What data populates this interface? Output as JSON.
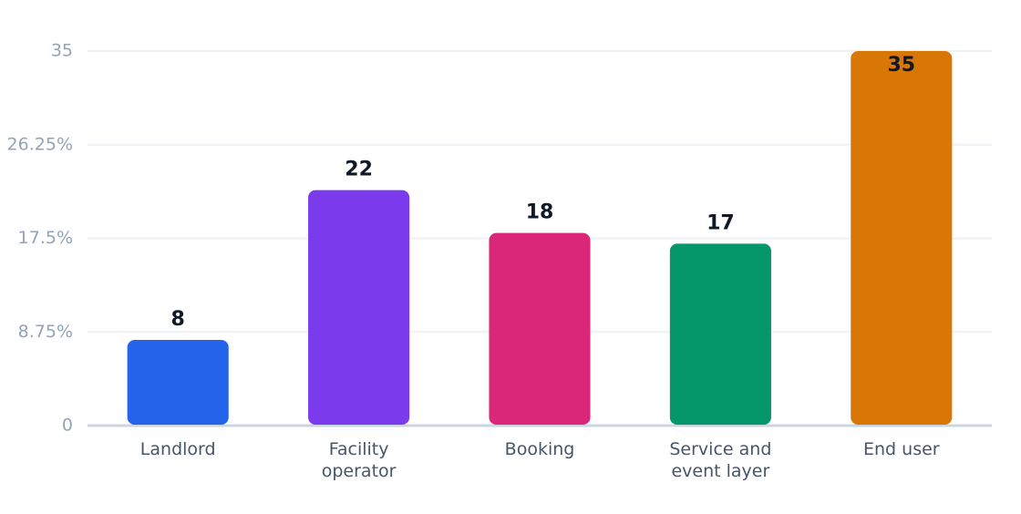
{
  "chart_data": {
    "type": "bar",
    "categories": [
      "Landlord",
      "Facility operator",
      "Booking",
      "Service and event layer",
      "End user"
    ],
    "values": [
      8,
      22,
      18,
      17,
      35
    ],
    "colors": [
      "#2563eb",
      "#7c3aed",
      "#db2777",
      "#059669",
      "#d97706"
    ],
    "ylim": [
      0,
      35
    ],
    "yticks": [
      0,
      {
        "value": 8.75,
        "label": "8.75%"
      },
      {
        "value": 17.5,
        "label": "17.5%"
      },
      {
        "value": 26.25,
        "label": "26.25%"
      },
      35
    ],
    "grid": true
  }
}
